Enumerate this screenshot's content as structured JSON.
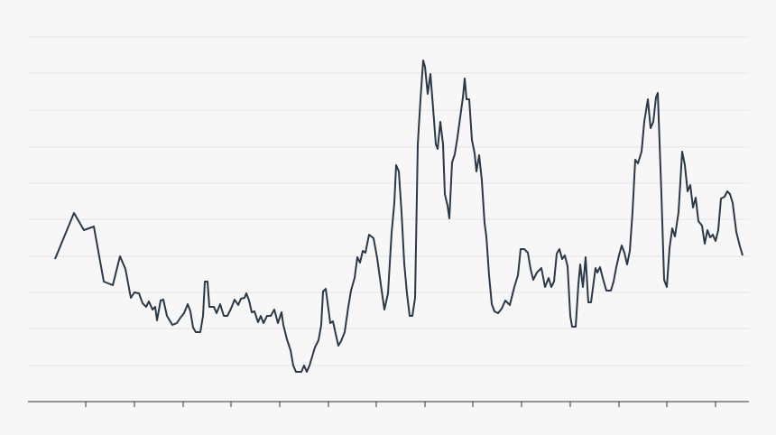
{
  "chart_data": {
    "type": "line",
    "color": "#2a3847",
    "grid": true,
    "xlim": [
      31,
      830
    ],
    "xticks": [
      95,
      149,
      203,
      256,
      310,
      364,
      417,
      471,
      524,
      578,
      632,
      686,
      739,
      793
    ],
    "ylim": [
      0,
      404
    ],
    "yticks": [
      0,
      40,
      81,
      121,
      161,
      202,
      242,
      282,
      323,
      364,
      404
    ],
    "x": [
      61,
      82,
      93,
      104,
      115,
      125,
      133,
      139,
      145,
      149,
      154,
      158,
      162,
      165,
      169,
      172,
      174,
      178,
      181,
      185,
      191,
      196,
      200,
      204,
      208,
      211,
      214,
      217,
      222,
      225,
      227,
      230,
      232,
      237,
      240,
      244,
      248,
      252,
      256,
      260,
      264,
      267,
      271,
      273,
      276,
      279,
      282,
      286,
      289,
      292,
      296,
      300,
      304,
      308,
      312,
      314,
      318,
      322,
      325,
      328,
      334,
      337,
      340,
      343,
      346,
      349,
      353,
      356,
      358,
      361,
      363,
      366,
      369,
      372,
      375,
      378,
      382,
      386,
      389,
      393,
      396,
      399,
      402,
      405,
      409,
      414,
      418,
      422,
      426,
      430,
      434,
      437,
      439,
      442,
      445,
      448,
      451,
      454,
      457,
      460,
      463,
      466,
      469,
      471,
      474,
      477,
      480,
      483,
      485,
      488,
      491,
      493,
      496,
      498,
      501,
      504,
      507,
      510,
      513,
      515,
      517,
      520,
      523,
      526,
      528,
      531,
      534,
      537,
      539,
      542,
      545,
      548,
      552,
      556,
      560,
      565,
      570,
      574,
      577,
      581,
      585,
      588,
      591,
      595,
      600,
      604,
      608,
      611,
      614,
      617,
      620,
      623,
      626,
      629,
      632,
      634,
      638,
      641,
      643,
      646,
      649,
      652,
      655,
      660,
      662,
      665,
      668,
      672,
      677,
      680,
      683,
      686,
      689,
      692,
      695,
      698,
      701,
      704,
      707,
      711,
      714,
      718,
      721,
      724,
      727,
      729,
      733,
      736,
      739,
      742,
      745,
      748,
      752,
      756,
      759,
      762,
      765,
      768,
      771,
      774,
      778,
      781,
      784,
      787,
      790,
      793,
      796,
      799,
      803,
      806,
      809,
      812,
      816,
      820,
      823
    ],
    "values": [
      158,
      209,
      190,
      194,
      133,
      129,
      161,
      147,
      115,
      121,
      120,
      109,
      105,
      111,
      102,
      105,
      90,
      112,
      113,
      95,
      85,
      87,
      93,
      98,
      108,
      100,
      82,
      77,
      77,
      95,
      133,
      133,
      105,
      105,
      98,
      108,
      95,
      95,
      103,
      113,
      107,
      114,
      115,
      120,
      112,
      99,
      100,
      88,
      95,
      87,
      95,
      95,
      102,
      87,
      99,
      85,
      69,
      57,
      40,
      33,
      33,
      40,
      33,
      40,
      50,
      60,
      68,
      85,
      122,
      125,
      110,
      87,
      89,
      75,
      62,
      67,
      77,
      105,
      123,
      137,
      160,
      154,
      167,
      165,
      185,
      181,
      159,
      130,
      102,
      120,
      187,
      220,
      262,
      255,
      210,
      153,
      120,
      95,
      95,
      115,
      285,
      335,
      378,
      371,
      341,
      363,
      325,
      285,
      280,
      310,
      285,
      230,
      217,
      203,
      265,
      274,
      293,
      315,
      337,
      358,
      335,
      335,
      290,
      275,
      255,
      273,
      245,
      198,
      183,
      140,
      108,
      100,
      98,
      103,
      112,
      107,
      127,
      140,
      169,
      169,
      165,
      147,
      135,
      143,
      148,
      127,
      137,
      127,
      133,
      164,
      169,
      158,
      162,
      150,
      95,
      83,
      83,
      130,
      152,
      127,
      160,
      110,
      110,
      148,
      143,
      149,
      137,
      123,
      123,
      133,
      149,
      162,
      173,
      165,
      152,
      167,
      210,
      268,
      264,
      277,
      310,
      335,
      303,
      310,
      337,
      342,
      230,
      135,
      127,
      170,
      192,
      183,
      210,
      277,
      262,
      233,
      240,
      215,
      226,
      200,
      195,
      175,
      190,
      182,
      185,
      178,
      190,
      225,
      227,
      233,
      230,
      220,
      188,
      172,
      162
    ]
  }
}
